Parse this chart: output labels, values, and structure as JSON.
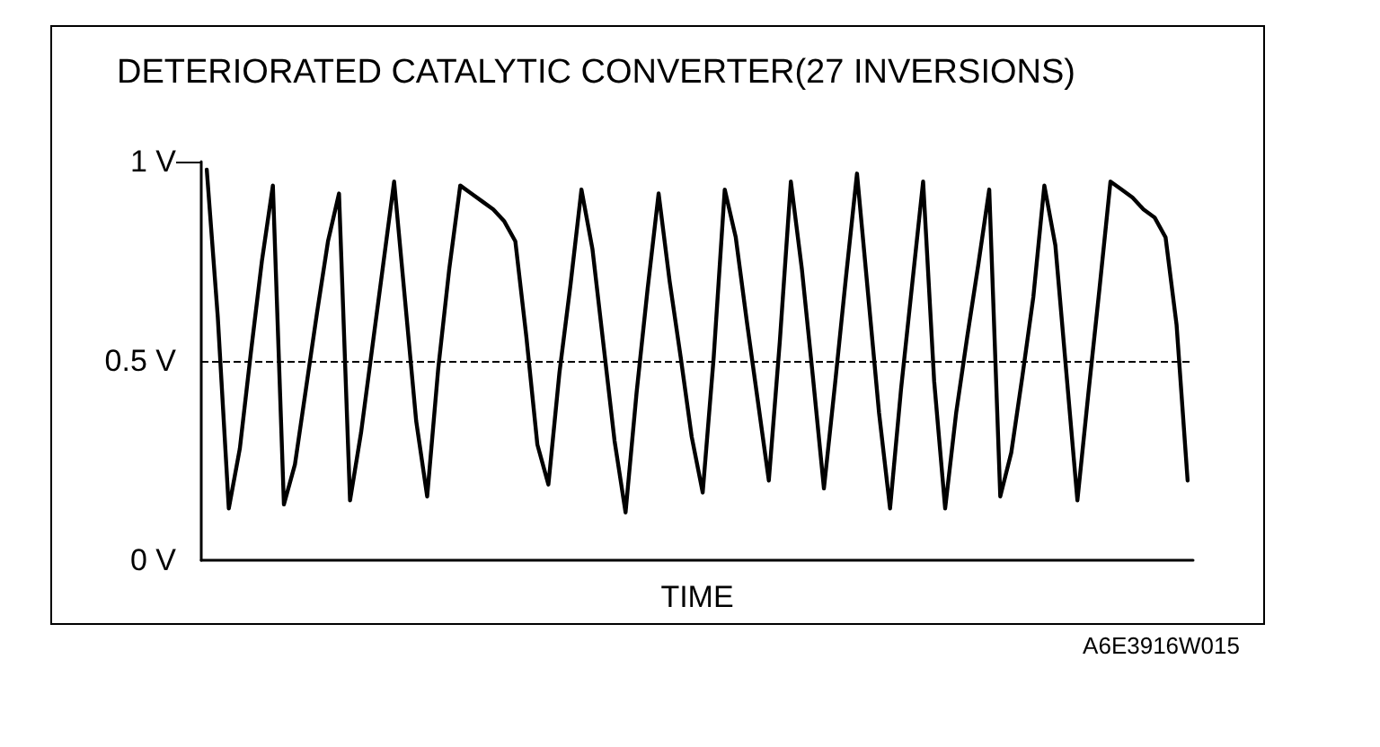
{
  "chart_data": {
    "type": "line",
    "title": "DETERIORATED CATALYTIC CONVERTER(27 INVERSIONS)",
    "xlabel": "TIME",
    "annotations": [
      "A6E3916W015"
    ],
    "categories": [
      null,
      null,
      null,
      null,
      null,
      null,
      null,
      null,
      null,
      null,
      null,
      null,
      null,
      null,
      null,
      null,
      null,
      null,
      null,
      null,
      null,
      null,
      null,
      null,
      null,
      null,
      null,
      null,
      null,
      null,
      null,
      null,
      null,
      null,
      null,
      null,
      null,
      null,
      null,
      null,
      null,
      null,
      null,
      null,
      null,
      null,
      null,
      null,
      null,
      null,
      null,
      null,
      null,
      null,
      null,
      null,
      null,
      null,
      null,
      null,
      null,
      null,
      null,
      null,
      null,
      null,
      null,
      null,
      null,
      null,
      null,
      null,
      null,
      null,
      null,
      null,
      null,
      null,
      null,
      null,
      null,
      null,
      null,
      null,
      null,
      null,
      null,
      null,
      null,
      null
    ],
    "ylim": [
      0,
      1
    ],
    "yticks": [
      {
        "value": 0,
        "label": "0 V"
      },
      {
        "value": 0.5,
        "label": "0.5 V"
      },
      {
        "value": 1,
        "label": "1 V"
      }
    ],
    "tick_labels": "y",
    "grid": false,
    "line_style": "solid",
    "ref_lines": [
      {
        "axis": "y",
        "value": 0.5,
        "label": null,
        "color": "#000000",
        "line_style": "dashed"
      }
    ],
    "series": [
      {
        "color": "#000000",
        "values": [
          0.98,
          0.61,
          0.13,
          0.28,
          0.52,
          0.75,
          0.94,
          0.14,
          0.24,
          0.43,
          0.62,
          0.8,
          0.92,
          0.15,
          0.32,
          0.53,
          0.74,
          0.95,
          0.65,
          0.35,
          0.16,
          0.48,
          0.73,
          0.94,
          0.92,
          0.9,
          0.88,
          0.85,
          0.8,
          0.56,
          0.29,
          0.19,
          0.47,
          0.69,
          0.93,
          0.78,
          0.54,
          0.3,
          0.12,
          0.42,
          0.68,
          0.92,
          0.7,
          0.51,
          0.31,
          0.17,
          0.51,
          0.93,
          0.81,
          0.6,
          0.4,
          0.2,
          0.55,
          0.95,
          0.73,
          0.46,
          0.18,
          0.44,
          0.71,
          0.97,
          0.67,
          0.37,
          0.13,
          0.43,
          0.69,
          0.95,
          0.45,
          0.13,
          0.37,
          0.56,
          0.74,
          0.93,
          0.16,
          0.27,
          0.46,
          0.66,
          0.94,
          0.79,
          0.47,
          0.15,
          0.42,
          0.68,
          0.95,
          0.93,
          0.91,
          0.88,
          0.86,
          0.81,
          0.59,
          0.2
        ]
      }
    ]
  }
}
